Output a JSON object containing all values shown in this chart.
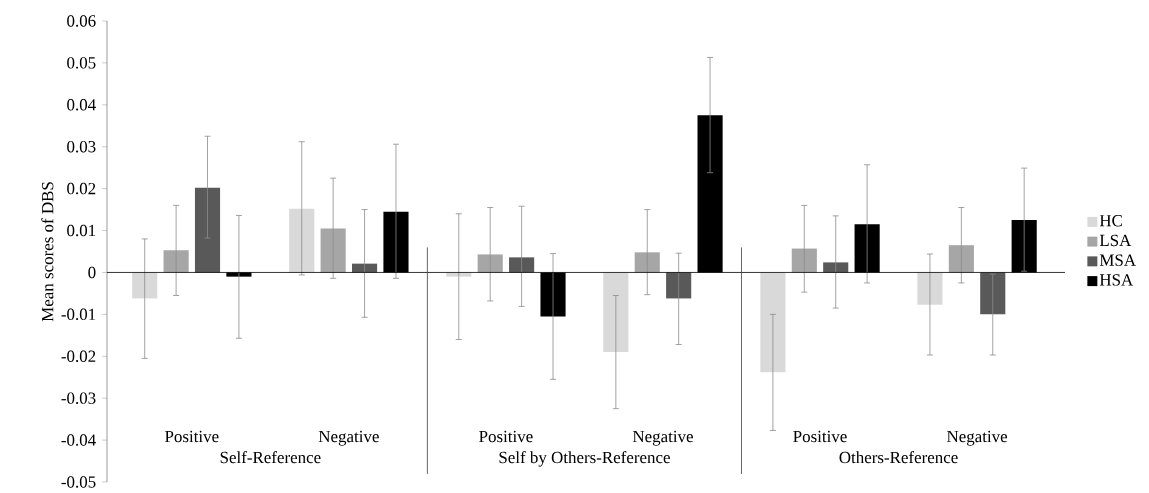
{
  "chart_data": {
    "type": "bar",
    "ylabel": "Mean scores of DBS",
    "categories": [
      "Positive",
      "Negative",
      "Positive",
      "Negative",
      "Positive",
      "Negative"
    ],
    "annotations": [
      "Self-Reference",
      "Self by Others-Reference",
      "Others-Reference"
    ],
    "series": [
      {
        "name": "HC",
        "color": "#d9d9d9",
        "values": [
          -0.0062,
          0.0152,
          -0.001,
          -0.019,
          -0.0238,
          -0.0077
        ],
        "errors": [
          [
            -0.0205,
            0.008
          ],
          [
            -0.0006,
            0.0312
          ],
          [
            -0.016,
            0.014
          ],
          [
            -0.0325,
            -0.0055
          ],
          [
            -0.0377,
            -0.01
          ],
          [
            -0.0197,
            0.0044
          ]
        ]
      },
      {
        "name": "LSA",
        "color": "#a6a6a6",
        "values": [
          0.0053,
          0.0105,
          0.0043,
          0.0048,
          0.0057,
          0.0065
        ],
        "errors": [
          [
            -0.0055,
            0.016
          ],
          [
            -0.0014,
            0.0225
          ],
          [
            -0.0068,
            0.0155
          ],
          [
            -0.0053,
            0.015
          ],
          [
            -0.0047,
            0.016
          ],
          [
            -0.0025,
            0.0155
          ]
        ]
      },
      {
        "name": "MSA",
        "color": "#595959",
        "values": [
          0.0202,
          0.0021,
          0.0036,
          -0.0062,
          0.0024,
          -0.01
        ],
        "errors": [
          [
            0.0082,
            0.0325
          ],
          [
            -0.0107,
            0.015
          ],
          [
            -0.0081,
            0.0158
          ],
          [
            -0.0172,
            0.0046
          ],
          [
            -0.0085,
            0.0135
          ],
          [
            -0.0197,
            -0.0004
          ]
        ]
      },
      {
        "name": "HSA",
        "color": "#000000",
        "values": [
          -0.001,
          0.0145,
          -0.0105,
          0.0375,
          0.0115,
          0.0125
        ],
        "errors": [
          [
            -0.0157,
            0.0136
          ],
          [
            -0.0014,
            0.0306
          ],
          [
            -0.0255,
            0.0045
          ],
          [
            0.0238,
            0.0513
          ],
          [
            -0.0025,
            0.0257
          ],
          [
            0.0003,
            0.0249
          ]
        ]
      }
    ],
    "ylim": [
      -0.05,
      0.06
    ],
    "yticks": [
      -0.05,
      -0.04,
      -0.03,
      -0.02,
      -0.01,
      0,
      0.01,
      0.02,
      0.03,
      0.04,
      0.05,
      0.06
    ],
    "legend": "right"
  }
}
